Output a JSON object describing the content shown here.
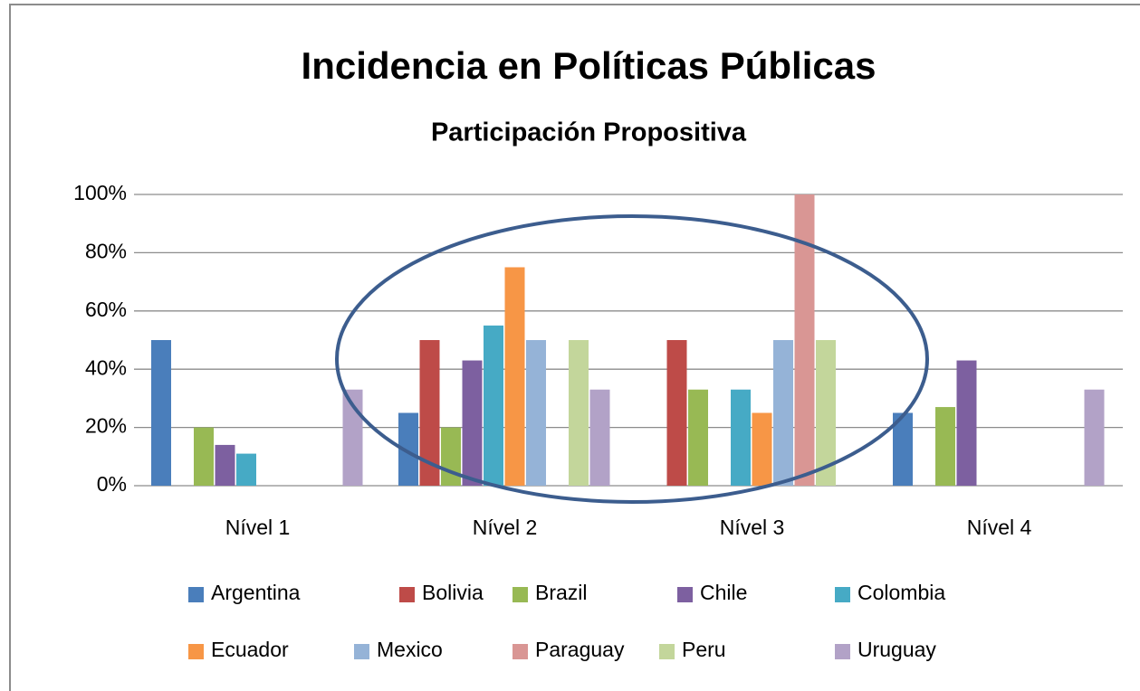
{
  "chart_data": {
    "type": "bar",
    "title": "Incidencia en Políticas Públicas",
    "subtitle": "Participación Propositiva",
    "categories": [
      "Nível 1",
      "Nível 2",
      "Nível 3",
      "Nível 4"
    ],
    "series": [
      {
        "name": "Argentina",
        "color": "#4a7ebb",
        "values": [
          50,
          25,
          0,
          25
        ]
      },
      {
        "name": "Bolivia",
        "color": "#be4b48",
        "values": [
          0,
          50,
          50,
          0
        ]
      },
      {
        "name": "Brazil",
        "color": "#98b954",
        "values": [
          20,
          20,
          33,
          27
        ]
      },
      {
        "name": "Chile",
        "color": "#7d60a0",
        "values": [
          14,
          43,
          0,
          43
        ]
      },
      {
        "name": "Colombia",
        "color": "#46aac5",
        "values": [
          11,
          55,
          33,
          0
        ]
      },
      {
        "name": "Ecuador",
        "color": "#f79646",
        "values": [
          0,
          75,
          25,
          0
        ]
      },
      {
        "name": "Mexico",
        "color": "#95b3d7",
        "values": [
          0,
          50,
          50,
          0
        ]
      },
      {
        "name": "Paraguay",
        "color": "#d99694",
        "values": [
          0,
          0,
          100,
          0
        ]
      },
      {
        "name": "Peru",
        "color": "#c3d69b",
        "values": [
          0,
          50,
          50,
          0
        ]
      },
      {
        "name": "Uruguay",
        "color": "#b2a2c7",
        "values": [
          33,
          33,
          0,
          33
        ]
      }
    ],
    "ylim": [
      0,
      100
    ],
    "yticks": [
      {
        "value": 0,
        "label": "0%"
      },
      {
        "value": 20,
        "label": "20%"
      },
      {
        "value": 40,
        "label": "40%"
      },
      {
        "value": 60,
        "label": "60%"
      },
      {
        "value": 80,
        "label": "80%"
      },
      {
        "value": 100,
        "label": "100%"
      }
    ],
    "grid": true,
    "legend": "bottom"
  }
}
